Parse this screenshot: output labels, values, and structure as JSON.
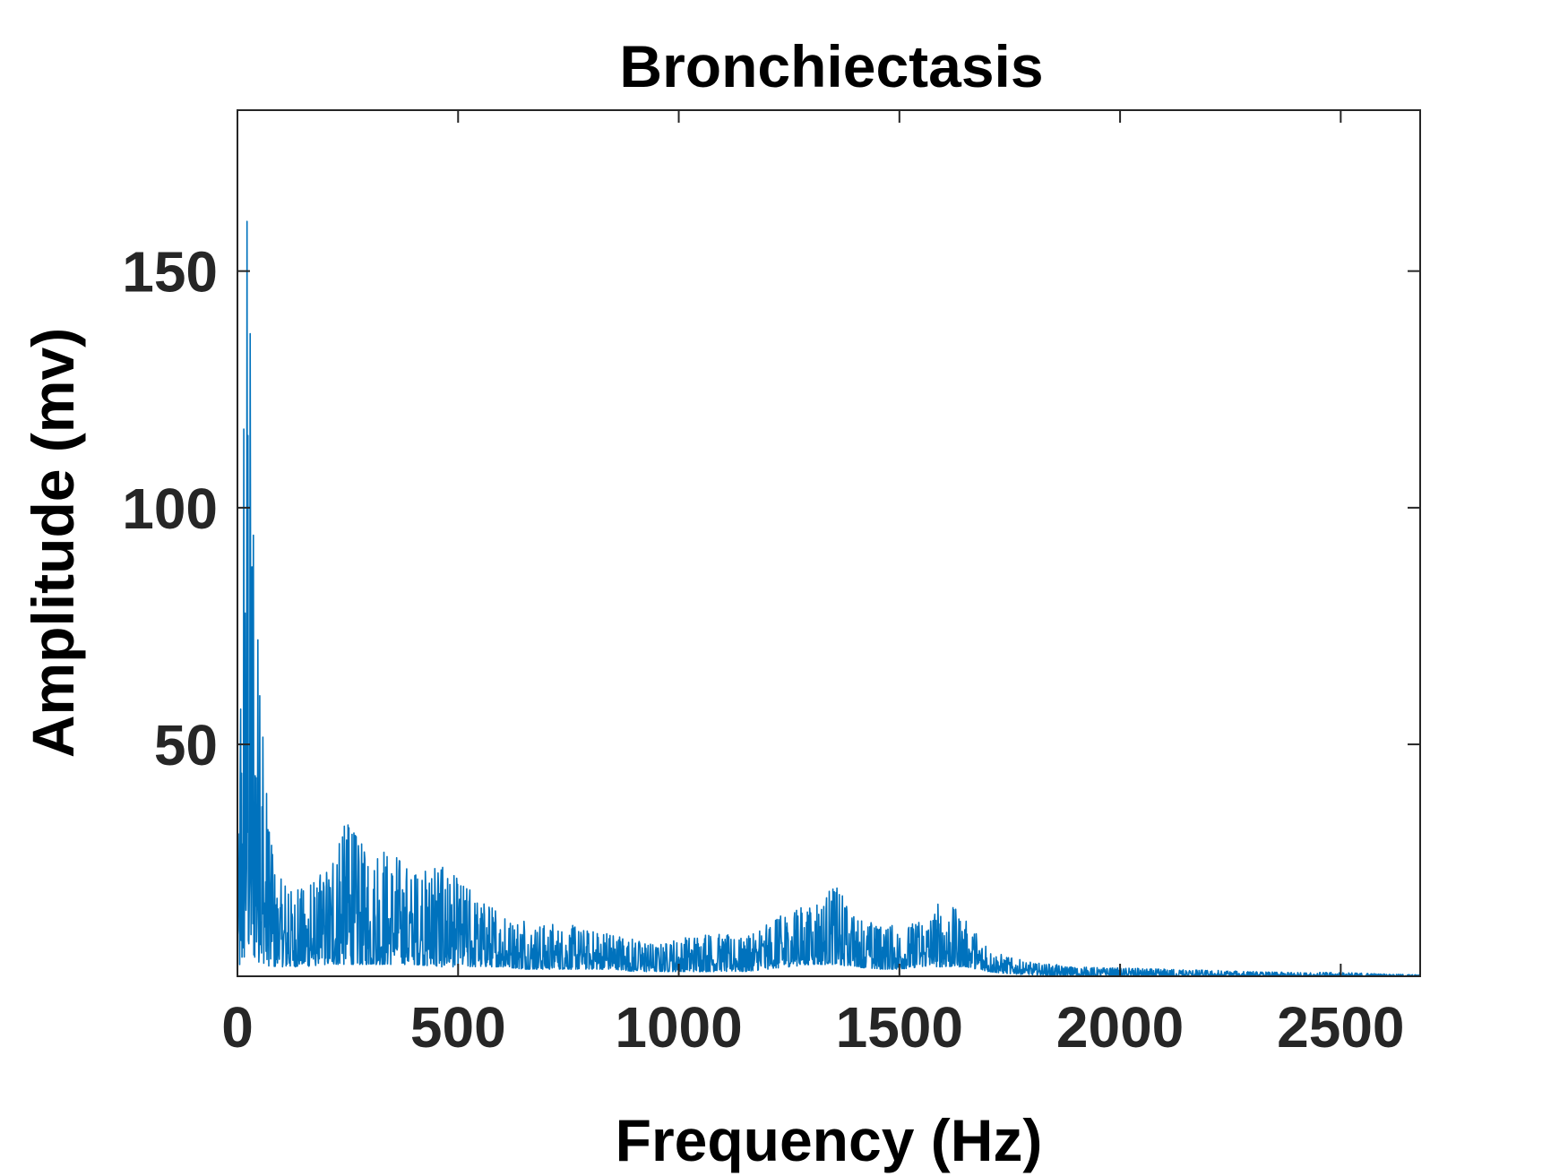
{
  "chart_data": {
    "type": "line",
    "title": "Bronchiectasis",
    "xlabel": "Frequency (Hz)",
    "ylabel": "Amplitude (mv)",
    "xlim": [
      0,
      2680
    ],
    "ylim": [
      1,
      184
    ],
    "xticks": [
      0,
      500,
      1000,
      1500,
      2000,
      2500
    ],
    "xtick_labels": [
      "0",
      "500",
      "1000",
      "1500",
      "2000",
      "2500"
    ],
    "yticks": [
      50,
      100,
      150
    ],
    "ytick_labels": [
      "50",
      "100",
      "150"
    ],
    "grid": false,
    "series_color": "#0072BD",
    "envelope": {
      "x": [
        0,
        10,
        20,
        25,
        30,
        35,
        45,
        55,
        65,
        75,
        90,
        110,
        150,
        200,
        250,
        300,
        350,
        400,
        450,
        500,
        550,
        600,
        650,
        700,
        750,
        800,
        850,
        900,
        950,
        1000,
        1050,
        1100,
        1150,
        1200,
        1250,
        1300,
        1350,
        1400,
        1450,
        1500,
        1550,
        1600,
        1650,
        1700,
        1750,
        1800,
        1850,
        1900,
        2000,
        2100,
        2200,
        2300,
        2400,
        2500,
        2600,
        2680
      ],
      "peak": [
        20,
        75,
        175,
        176,
        140,
        100,
        85,
        58,
        45,
        30,
        23,
        20,
        20,
        24,
        35,
        26,
        29,
        24,
        25,
        22,
        18,
        14,
        13,
        12,
        12,
        11,
        10,
        9,
        8,
        9,
        11,
        10,
        9,
        12,
        15,
        16,
        21,
        14,
        12,
        12,
        13,
        18,
        13,
        7,
        5,
        4,
        3.5,
        3,
        2.8,
        2.5,
        2.3,
        2,
        1.8,
        1.8,
        1.5,
        1.3
      ],
      "base": [
        2,
        3,
        5,
        5,
        5,
        5,
        4,
        4,
        3.5,
        3,
        3,
        3,
        3,
        3.5,
        3.5,
        3.5,
        3.5,
        3.5,
        3,
        3,
        3,
        3,
        2.5,
        2.5,
        2.5,
        2.5,
        2.5,
        2,
        2,
        2,
        2,
        2,
        2,
        2.5,
        3,
        3.5,
        3.5,
        3,
        2.5,
        2.5,
        3,
        3,
        3,
        2,
        1.5,
        1.3,
        1.2,
        1.1,
        1,
        1,
        1,
        1,
        1,
        1,
        1,
        1
      ]
    }
  }
}
